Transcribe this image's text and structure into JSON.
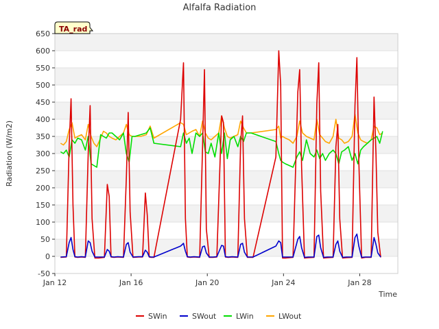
{
  "chart_data": {
    "type": "line",
    "title": "Alfalfa Radiation",
    "xlabel": "Time",
    "ylabel": "Radiation (W/m2)",
    "badge": "TA_rad",
    "ylim": [
      -50,
      650
    ],
    "yticks": [
      -50,
      0,
      50,
      100,
      150,
      200,
      250,
      300,
      350,
      400,
      450,
      500,
      550,
      600,
      650
    ],
    "xlim": [
      12,
      30
    ],
    "xticks": [
      {
        "value": 12,
        "label": "Jan 12"
      },
      {
        "value": 16,
        "label": "Jan 16"
      },
      {
        "value": 20,
        "label": "Jan 20"
      },
      {
        "value": 24,
        "label": "Jan 24"
      },
      {
        "value": 28,
        "label": "Jan 28"
      }
    ],
    "legend_position": "bottom",
    "series": [
      {
        "name": "SWin",
        "color": "#dd0000",
        "x": [
          12.3,
          12.6,
          12.75,
          12.85,
          12.95,
          13.05,
          13.2,
          13.4,
          13.6,
          13.75,
          13.85,
          13.95,
          14.1,
          14.3,
          14.6,
          14.75,
          14.85,
          14.95,
          15.1,
          15.3,
          15.6,
          15.75,
          15.85,
          15.95,
          16.1,
          16.4,
          16.6,
          16.75,
          16.85,
          16.95,
          17.05,
          17.2,
          18.6,
          18.75,
          18.85,
          18.95,
          19.1,
          19.3,
          19.6,
          19.75,
          19.85,
          19.95,
          20.1,
          20.3,
          20.5,
          20.75,
          20.85,
          20.95,
          21.1,
          21.3,
          21.6,
          21.75,
          21.85,
          21.95,
          22.1,
          22.4,
          23.6,
          23.75,
          23.85,
          23.95,
          24.1,
          24.3,
          24.5,
          24.75,
          24.85,
          24.95,
          25.1,
          25.3,
          25.6,
          25.75,
          25.85,
          25.95,
          26.1,
          26.3,
          26.6,
          26.75,
          26.85,
          26.95,
          27.1,
          27.3,
          27.6,
          27.75,
          27.85,
          27.95,
          28.1,
          28.3,
          28.6,
          28.75,
          28.85,
          28.95,
          29.1
        ],
        "values": [
          -3,
          -2,
          320,
          460,
          150,
          -2,
          -3,
          -2,
          -3,
          300,
          440,
          110,
          -5,
          -5,
          -3,
          210,
          175,
          -2,
          -3,
          -2,
          -3,
          230,
          420,
          130,
          -3,
          -2,
          -2,
          185,
          120,
          -2,
          -3,
          -3,
          400,
          565,
          110,
          -2,
          -3,
          -2,
          -3,
          320,
          545,
          80,
          -3,
          -3,
          -2,
          410,
          390,
          -2,
          -3,
          -2,
          -3,
          330,
          410,
          110,
          -3,
          -3,
          290,
          600,
          500,
          -5,
          -5,
          -4,
          -3,
          480,
          545,
          260,
          -5,
          -4,
          -3,
          445,
          565,
          190,
          -5,
          -4,
          -3,
          320,
          385,
          110,
          -5,
          -4,
          -3,
          440,
          580,
          280,
          -5,
          -3,
          -3,
          465,
          300,
          70,
          -3
        ]
      },
      {
        "name": "SWout",
        "color": "#0000cc",
        "x": [
          12.3,
          12.6,
          12.75,
          12.85,
          12.95,
          13.05,
          13.2,
          13.4,
          13.6,
          13.75,
          13.85,
          13.95,
          14.1,
          14.3,
          14.6,
          14.75,
          14.85,
          14.95,
          15.1,
          15.3,
          15.6,
          15.75,
          15.85,
          15.95,
          16.1,
          16.4,
          16.6,
          16.75,
          16.85,
          16.95,
          17.05,
          17.2,
          18.6,
          18.75,
          18.85,
          18.95,
          19.1,
          19.3,
          19.6,
          19.75,
          19.85,
          19.95,
          20.1,
          20.3,
          20.5,
          20.75,
          20.85,
          20.95,
          21.1,
          21.3,
          21.6,
          21.75,
          21.85,
          21.95,
          22.1,
          22.4,
          23.6,
          23.75,
          23.85,
          23.95,
          24.1,
          24.3,
          24.5,
          24.75,
          24.85,
          24.95,
          25.1,
          25.3,
          25.6,
          25.75,
          25.85,
          25.95,
          26.1,
          26.3,
          26.6,
          26.75,
          26.85,
          26.95,
          27.1,
          27.3,
          27.6,
          27.75,
          27.85,
          27.95,
          28.1,
          28.3,
          28.6,
          28.75,
          28.85,
          28.95,
          29.1
        ],
        "values": [
          -2,
          -1,
          40,
          55,
          20,
          -1,
          -2,
          -1,
          -2,
          45,
          40,
          15,
          -2,
          -2,
          -2,
          20,
          15,
          -1,
          -2,
          -1,
          -2,
          35,
          40,
          12,
          -2,
          -1,
          -1,
          18,
          12,
          -1,
          -2,
          -2,
          30,
          38,
          15,
          -1,
          -2,
          -1,
          -2,
          28,
          30,
          10,
          -2,
          -2,
          -1,
          32,
          30,
          -1,
          -2,
          -1,
          -2,
          35,
          38,
          12,
          -2,
          -2,
          30,
          45,
          40,
          -2,
          -2,
          -2,
          -2,
          50,
          58,
          25,
          -3,
          -2,
          -2,
          58,
          62,
          25,
          -3,
          -2,
          -2,
          35,
          45,
          15,
          -3,
          -2,
          -2,
          55,
          65,
          30,
          -3,
          -2,
          -2,
          55,
          35,
          10,
          -2
        ]
      },
      {
        "name": "LWin",
        "color": "#00dd00",
        "x": [
          12.3,
          12.45,
          12.6,
          12.75,
          12.9,
          13.05,
          13.2,
          13.4,
          13.6,
          13.75,
          13.9,
          14.05,
          14.2,
          14.4,
          14.55,
          14.7,
          14.85,
          15.0,
          15.2,
          15.4,
          15.6,
          15.75,
          15.9,
          16.05,
          16.2,
          16.5,
          16.8,
          17.0,
          17.2,
          18.6,
          18.75,
          18.9,
          19.05,
          19.2,
          19.4,
          19.6,
          19.75,
          19.9,
          20.05,
          20.2,
          20.4,
          20.6,
          20.75,
          20.9,
          21.05,
          21.2,
          21.4,
          21.6,
          21.75,
          21.9,
          22.05,
          22.3,
          23.6,
          23.75,
          23.85,
          23.95,
          24.1,
          24.3,
          24.5,
          24.7,
          24.85,
          25.0,
          25.2,
          25.4,
          25.6,
          25.75,
          25.9,
          26.05,
          26.2,
          26.4,
          26.6,
          26.75,
          26.9,
          27.05,
          27.2,
          27.4,
          27.6,
          27.75,
          27.9,
          28.05,
          28.2,
          28.4,
          28.6,
          28.75,
          28.9,
          29.05,
          29.2
        ],
        "values": [
          305,
          300,
          310,
          290,
          340,
          330,
          345,
          340,
          310,
          350,
          270,
          265,
          260,
          355,
          350,
          345,
          360,
          360,
          350,
          340,
          360,
          300,
          275,
          350,
          350,
          355,
          360,
          375,
          330,
          320,
          360,
          330,
          345,
          300,
          360,
          350,
          360,
          305,
          300,
          330,
          290,
          360,
          300,
          360,
          285,
          340,
          350,
          320,
          350,
          335,
          360,
          360,
          335,
          300,
          280,
          275,
          270,
          265,
          260,
          290,
          305,
          280,
          340,
          300,
          290,
          310,
          285,
          300,
          280,
          300,
          310,
          300,
          270,
          305,
          310,
          320,
          280,
          300,
          270,
          310,
          320,
          330,
          340,
          345,
          350,
          330,
          365
        ]
      },
      {
        "name": "LWout",
        "color": "#ffa500",
        "x": [
          12.3,
          12.45,
          12.6,
          12.75,
          12.9,
          13.05,
          13.2,
          13.4,
          13.6,
          13.75,
          13.9,
          14.05,
          14.2,
          14.4,
          14.55,
          14.7,
          14.85,
          15.0,
          15.2,
          15.4,
          15.6,
          15.75,
          15.9,
          16.05,
          16.2,
          16.5,
          16.8,
          17.0,
          17.2,
          18.6,
          18.75,
          18.9,
          19.05,
          19.2,
          19.4,
          19.6,
          19.75,
          19.9,
          20.05,
          20.2,
          20.4,
          20.6,
          20.75,
          20.9,
          21.05,
          21.2,
          21.4,
          21.6,
          21.75,
          21.9,
          22.05,
          22.3,
          23.6,
          23.75,
          23.85,
          23.95,
          24.1,
          24.3,
          24.5,
          24.7,
          24.85,
          25.0,
          25.2,
          25.4,
          25.6,
          25.75,
          25.9,
          26.05,
          26.2,
          26.4,
          26.6,
          26.75,
          26.9,
          27.05,
          27.2,
          27.4,
          27.6,
          27.75,
          27.9,
          28.05,
          28.2,
          28.4,
          28.6,
          28.75,
          28.9,
          29.05,
          29.2
        ],
        "values": [
          330,
          325,
          335,
          370,
          390,
          345,
          350,
          355,
          340,
          385,
          350,
          330,
          320,
          345,
          365,
          360,
          350,
          345,
          340,
          350,
          360,
          385,
          355,
          350,
          350,
          350,
          355,
          380,
          345,
          390,
          385,
          355,
          360,
          365,
          370,
          350,
          395,
          360,
          345,
          340,
          350,
          360,
          410,
          375,
          350,
          345,
          350,
          355,
          395,
          375,
          360,
          360,
          370,
          380,
          345,
          350,
          345,
          340,
          330,
          350,
          395,
          360,
          350,
          345,
          340,
          400,
          355,
          345,
          335,
          330,
          350,
          400,
          345,
          340,
          330,
          335,
          350,
          415,
          360,
          340,
          335,
          330,
          340,
          380,
          375,
          355,
          360
        ]
      }
    ]
  }
}
